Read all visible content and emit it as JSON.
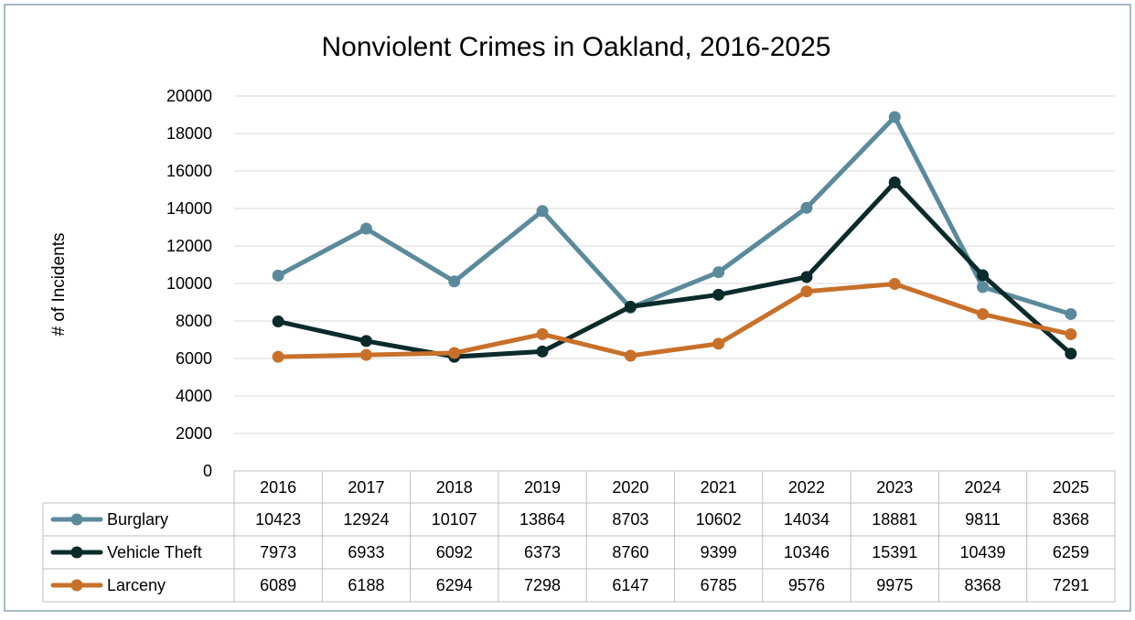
{
  "chart_data": {
    "type": "line",
    "title": "Nonviolent Crimes in Oakland, 2016-2025",
    "ylabel": "# of Incidents",
    "xlabel": "",
    "categories": [
      "2016",
      "2017",
      "2018",
      "2019",
      "2020",
      "2021",
      "2022",
      "2023",
      "2024",
      "2025"
    ],
    "ylim": [
      0,
      20000
    ],
    "yticks": [
      "0",
      "2000",
      "4000",
      "6000",
      "8000",
      "10000",
      "12000",
      "14000",
      "16000",
      "18000",
      "20000"
    ],
    "grid": true,
    "legend": "data-table",
    "series": [
      {
        "name": "Burglary",
        "color": "#5b8a9c",
        "values": [
          10423,
          12924,
          10107,
          13864,
          8703,
          10602,
          14034,
          18881,
          9811,
          8368
        ]
      },
      {
        "name": "Vehicle Theft",
        "color": "#0b2b2b",
        "values": [
          7973,
          6933,
          6092,
          6373,
          8760,
          9399,
          10346,
          15391,
          10439,
          6259
        ]
      },
      {
        "name": "Larceny",
        "color": "#c8702a",
        "values": [
          6089,
          6188,
          6294,
          7298,
          6147,
          6785,
          9576,
          9975,
          8368,
          7291
        ]
      }
    ]
  }
}
